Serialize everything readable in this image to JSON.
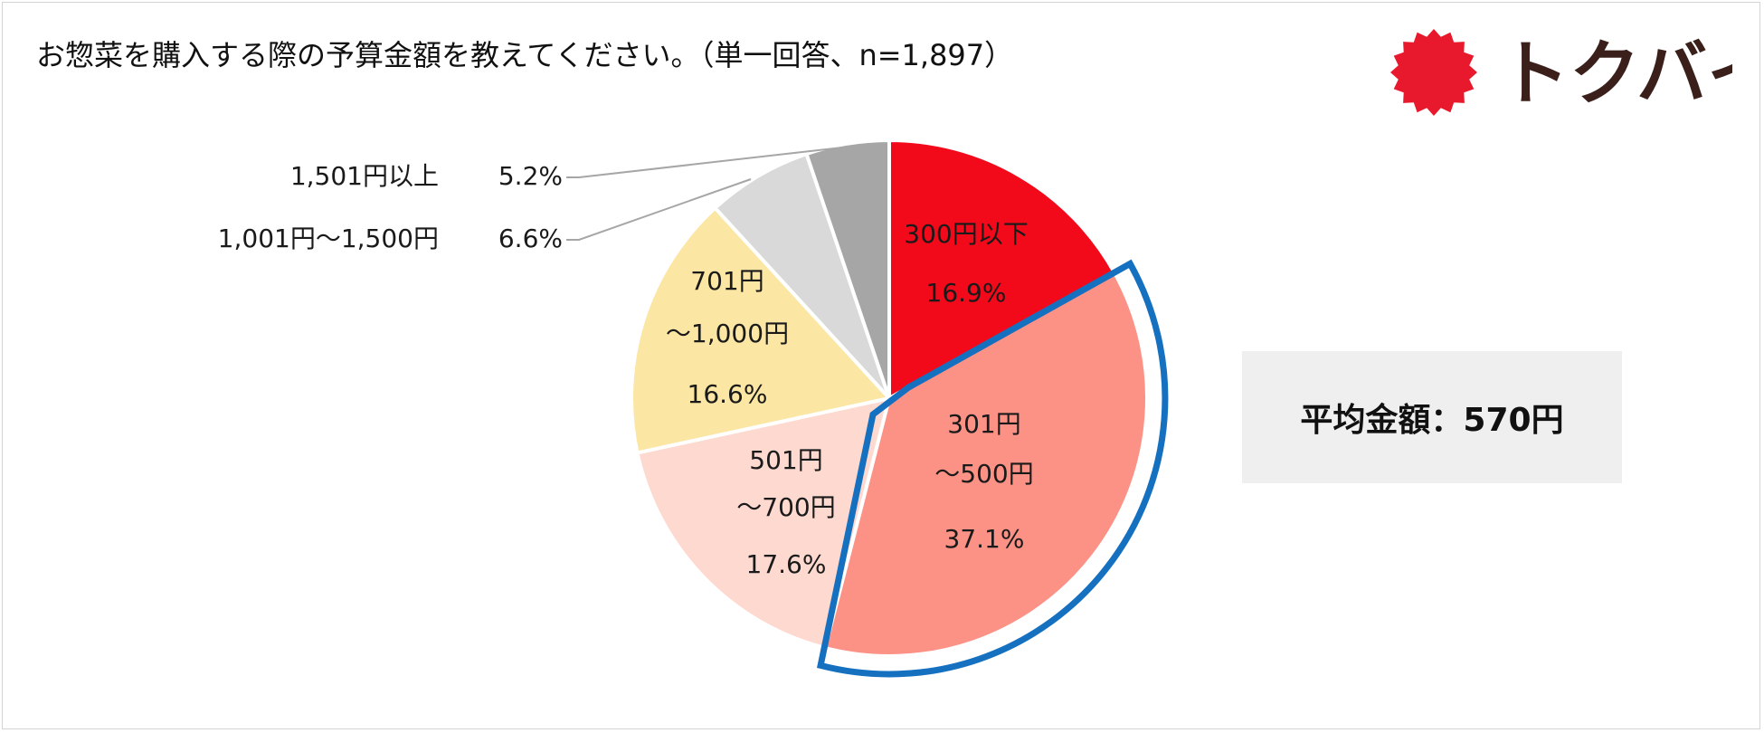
{
  "title": "お惣菜を購入する際の予算金額を教えてください。（単一回答、n=1,897）",
  "logo": {
    "text": "トクバイ",
    "sun_color": "#e8192c",
    "text_color": "#3a1f1a"
  },
  "average": {
    "label": "平均金額：570円"
  },
  "chart_data": {
    "type": "pie",
    "title": "お惣菜を購入する際の予算金額を教えてください。（単一回答、n=1,897）",
    "start_angle_deg": 0,
    "direction": "clockwise",
    "highlighted_slice": 1,
    "slices": [
      {
        "label_lines": [
          "300円以下"
        ],
        "value": 16.9,
        "value_text": "16.9%",
        "color": "#f20a1a"
      },
      {
        "label_lines": [
          "301円",
          "～500円"
        ],
        "value": 37.1,
        "value_text": "37.1%",
        "color": "#fc9285"
      },
      {
        "label_lines": [
          "501円",
          "～700円"
        ],
        "value": 17.6,
        "value_text": "17.6%",
        "color": "#fdd9d0"
      },
      {
        "label_lines": [
          "701円",
          "～1,000円"
        ],
        "value": 16.6,
        "value_text": "16.6%",
        "color": "#fbe6a4"
      },
      {
        "label_lines": [
          "1,001円～1,500円"
        ],
        "value": 6.6,
        "value_text": "6.6%",
        "color": "#d9d9d9",
        "outside": true
      },
      {
        "label_lines": [
          "1,501円以上"
        ],
        "value": 5.2,
        "value_text": "5.2%",
        "color": "#a6a6a6",
        "outside": true
      }
    ]
  }
}
